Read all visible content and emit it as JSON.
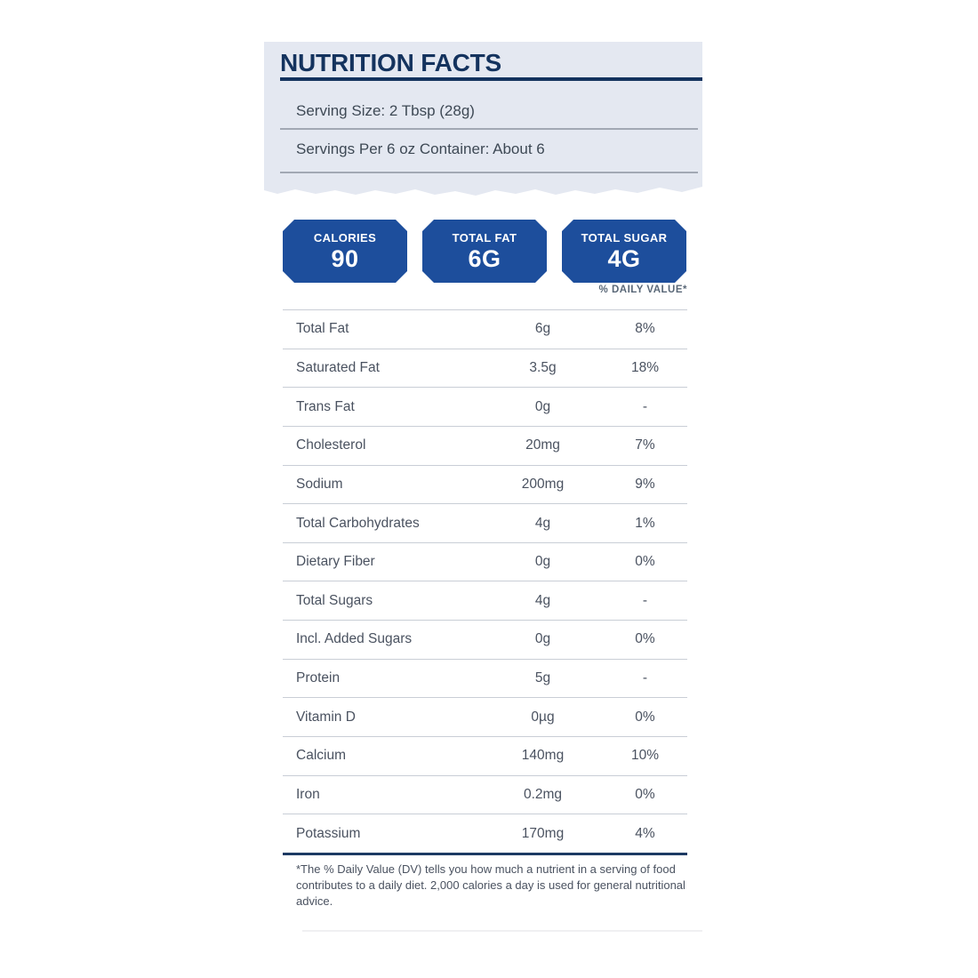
{
  "header": {
    "title": "NUTRITION FACTS",
    "serving_size": "Serving Size: 2 Tbsp (28g)",
    "servings_per_container": "Servings Per 6 oz Container: About 6"
  },
  "badges": [
    {
      "label": "CALORIES",
      "value": "90"
    },
    {
      "label": "TOTAL FAT",
      "value": "6G"
    },
    {
      "label": "TOTAL SUGAR",
      "value": "4G"
    }
  ],
  "table": {
    "daily_value_header": "% DAILY VALUE*",
    "rows": [
      {
        "label": "Total Fat",
        "amount": "6g",
        "dv": "8%"
      },
      {
        "label": "Saturated Fat",
        "amount": "3.5g",
        "dv": "18%"
      },
      {
        "label": "Trans Fat",
        "amount": "0g",
        "dv": "-"
      },
      {
        "label": "Cholesterol",
        "amount": "20mg",
        "dv": "7%"
      },
      {
        "label": "Sodium",
        "amount": "200mg",
        "dv": "9%"
      },
      {
        "label": "Total Carbohydrates",
        "amount": "4g",
        "dv": "1%"
      },
      {
        "label": "Dietary Fiber",
        "amount": "0g",
        "dv": "0%"
      },
      {
        "label": "Total Sugars",
        "amount": "4g",
        "dv": "-"
      },
      {
        "label": "Incl. Added Sugars",
        "amount": "0g",
        "dv": "0%"
      },
      {
        "label": "Protein",
        "amount": "5g",
        "dv": "-"
      },
      {
        "label": "Vitamin D",
        "amount": "0µg",
        "dv": "0%"
      },
      {
        "label": "Calcium",
        "amount": "140mg",
        "dv": "10%"
      },
      {
        "label": "Iron",
        "amount": "0.2mg",
        "dv": "0%"
      },
      {
        "label": "Potassium",
        "amount": "170mg",
        "dv": "4%"
      }
    ]
  },
  "footnote": "*The % Daily Value (DV) tells you how much a nutrient in a serving of food contributes to a daily diet. 2,000 calories a day is used for general nutritional advice.",
  "colors": {
    "badge_blue": "#1d4e9c",
    "title_navy": "#14335e",
    "header_bg": "#e4e8f1",
    "row_text": "#4a5260",
    "muted_text": "#5a6878",
    "divider": "#c9ced6",
    "header_divider": "#a2a8b4",
    "thick_rule_navy": "#1c3a63"
  }
}
